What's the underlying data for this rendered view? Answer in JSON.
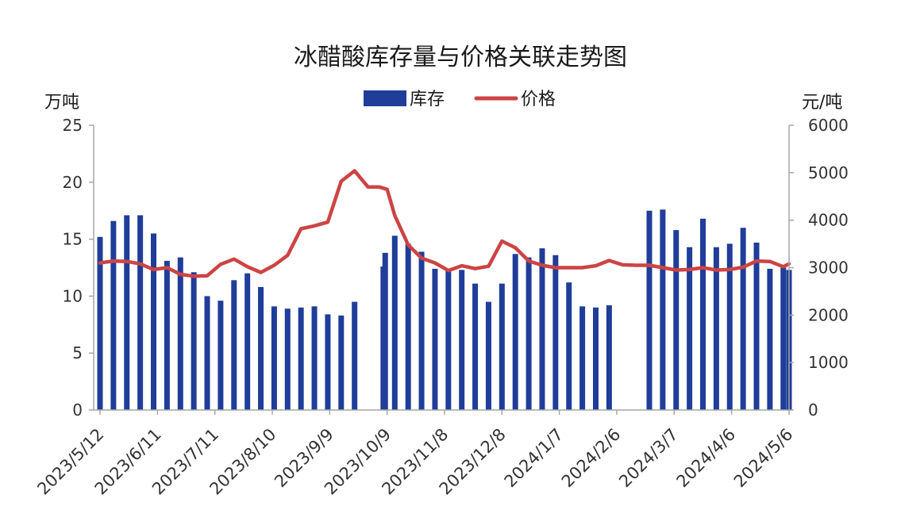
{
  "chart_data": {
    "type": "bar+line",
    "title": "冰醋酸库存量与价格关联走势图",
    "left_unit": "万吨",
    "right_unit": "元/吨",
    "legend_position": "top-center",
    "grid": false,
    "left_axis": {
      "min": 0,
      "max": 25,
      "ticks": [
        "0",
        "5",
        "10",
        "15",
        "20",
        "25"
      ]
    },
    "right_axis": {
      "min": 0,
      "max": 6000,
      "ticks": [
        "0",
        "1000",
        "2000",
        "3000",
        "4000",
        "5000",
        "6000"
      ]
    },
    "x_tick_labels": [
      "2023/5/12",
      "2023/6/11",
      "2023/7/11",
      "2023/8/10",
      "2023/9/9",
      "2023/10/9",
      "2023/11/8",
      "2023/12/8",
      "2024/1/7",
      "2024/2/6",
      "2024/3/7",
      "2024/4/6",
      "2024/5/6"
    ],
    "x_range": [
      "2023/5/12",
      "2024/5/6"
    ],
    "colors": {
      "bars": "#1f3d99",
      "line": "#cc4444"
    },
    "series": [
      {
        "name": "库存",
        "type": "bar",
        "axis": "left",
        "points": [
          [
            "2023/5/12",
            15.2
          ],
          [
            "2023/5/19",
            16.6
          ],
          [
            "2023/5/26",
            17.1
          ],
          [
            "2023/6/2",
            17.1
          ],
          [
            "2023/6/9",
            15.5
          ],
          [
            "2023/6/16",
            13.1
          ],
          [
            "2023/6/23",
            13.4
          ],
          [
            "2023/6/30",
            12.1
          ],
          [
            "2023/7/7",
            10.0
          ],
          [
            "2023/7/14",
            9.6
          ],
          [
            "2023/7/21",
            11.4
          ],
          [
            "2023/7/28",
            12.0
          ],
          [
            "2023/8/4",
            10.8
          ],
          [
            "2023/8/11",
            9.1
          ],
          [
            "2023/8/18",
            8.9
          ],
          [
            "2023/8/25",
            9.0
          ],
          [
            "2023/9/1",
            9.1
          ],
          [
            "2023/9/8",
            8.4
          ],
          [
            "2023/9/15",
            8.3
          ],
          [
            "2023/9/22",
            9.5
          ],
          [
            "2023/10/7",
            12.6
          ],
          [
            "2023/10/8",
            13.8
          ],
          [
            "2023/10/13",
            15.3
          ],
          [
            "2023/10/20",
            14.6
          ],
          [
            "2023/10/27",
            13.9
          ],
          [
            "2023/11/3",
            12.4
          ],
          [
            "2023/11/10",
            12.2
          ],
          [
            "2023/11/17",
            12.3
          ],
          [
            "2023/11/24",
            11.1
          ],
          [
            "2023/12/1",
            9.5
          ],
          [
            "2023/12/8",
            11.1
          ],
          [
            "2023/12/15",
            13.7
          ],
          [
            "2023/12/22",
            13.4
          ],
          [
            "2023/12/29",
            14.2
          ],
          [
            "2024/1/5",
            13.6
          ],
          [
            "2024/1/12",
            11.2
          ],
          [
            "2024/1/19",
            9.1
          ],
          [
            "2024/1/26",
            9.0
          ],
          [
            "2024/2/2",
            9.2
          ],
          [
            "2024/2/23",
            17.5
          ],
          [
            "2024/3/1",
            17.6
          ],
          [
            "2024/3/8",
            15.8
          ],
          [
            "2024/3/15",
            14.3
          ],
          [
            "2024/3/22",
            16.8
          ],
          [
            "2024/3/29",
            14.3
          ],
          [
            "2024/4/5",
            14.6
          ],
          [
            "2024/4/12",
            16.0
          ],
          [
            "2024/4/19",
            14.7
          ],
          [
            "2024/4/26",
            12.4
          ],
          [
            "2024/5/3",
            12.5
          ],
          [
            "2024/5/6",
            12.3
          ]
        ]
      },
      {
        "name": "价格",
        "type": "line",
        "axis": "right",
        "points": [
          [
            "2023/5/12",
            3100
          ],
          [
            "2023/5/19",
            3140
          ],
          [
            "2023/5/26",
            3130
          ],
          [
            "2023/6/2",
            3080
          ],
          [
            "2023/6/9",
            2960
          ],
          [
            "2023/6/16",
            3000
          ],
          [
            "2023/6/23",
            2860
          ],
          [
            "2023/6/30",
            2820
          ],
          [
            "2023/7/7",
            2830
          ],
          [
            "2023/7/14",
            3070
          ],
          [
            "2023/7/21",
            3180
          ],
          [
            "2023/7/28",
            3020
          ],
          [
            "2023/8/4",
            2900
          ],
          [
            "2023/8/11",
            3050
          ],
          [
            "2023/8/18",
            3260
          ],
          [
            "2023/8/25",
            3820
          ],
          [
            "2023/9/1",
            3880
          ],
          [
            "2023/9/8",
            3960
          ],
          [
            "2023/9/15",
            4820
          ],
          [
            "2023/9/22",
            5040
          ],
          [
            "2023/9/29",
            4700
          ],
          [
            "2023/10/5",
            4700
          ],
          [
            "2023/10/9",
            4650
          ],
          [
            "2023/10/13",
            4100
          ],
          [
            "2023/10/20",
            3480
          ],
          [
            "2023/10/27",
            3200
          ],
          [
            "2023/11/3",
            3100
          ],
          [
            "2023/11/10",
            2940
          ],
          [
            "2023/11/17",
            3040
          ],
          [
            "2023/11/24",
            2980
          ],
          [
            "2023/12/1",
            3030
          ],
          [
            "2023/12/8",
            3560
          ],
          [
            "2023/12/15",
            3420
          ],
          [
            "2023/12/22",
            3140
          ],
          [
            "2023/12/29",
            3050
          ],
          [
            "2024/1/5",
            3000
          ],
          [
            "2024/1/12",
            3000
          ],
          [
            "2024/1/19",
            3000
          ],
          [
            "2024/1/26",
            3040
          ],
          [
            "2024/2/2",
            3150
          ],
          [
            "2024/2/9",
            3060
          ],
          [
            "2024/2/16",
            3050
          ],
          [
            "2024/2/23",
            3050
          ],
          [
            "2024/3/1",
            3000
          ],
          [
            "2024/3/8",
            2950
          ],
          [
            "2024/3/15",
            2960
          ],
          [
            "2024/3/22",
            3000
          ],
          [
            "2024/3/29",
            2950
          ],
          [
            "2024/4/5",
            2960
          ],
          [
            "2024/4/12",
            3010
          ],
          [
            "2024/4/19",
            3140
          ],
          [
            "2024/4/26",
            3130
          ],
          [
            "2024/5/3",
            3020
          ],
          [
            "2024/5/6",
            3080
          ]
        ]
      }
    ]
  }
}
